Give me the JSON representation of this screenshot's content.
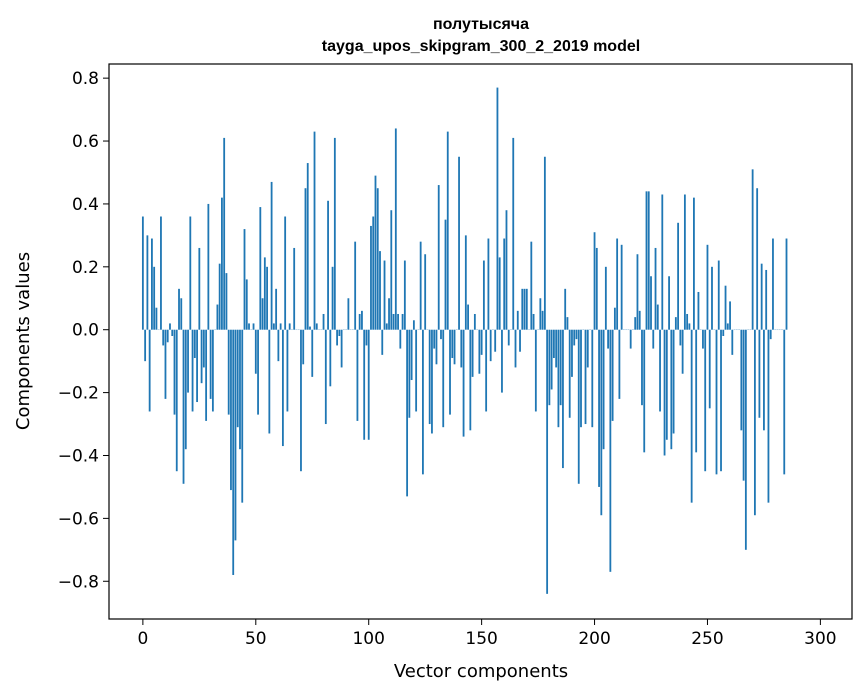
{
  "chart_data": {
    "type": "bar",
    "title": "полутысяча",
    "subtitle": "tayga_upos_skipgram_300_2_2019 model",
    "xlabel": "Vector components",
    "ylabel": "Components values",
    "xlim": [
      -15,
      314
    ],
    "ylim": [
      -0.92,
      0.845
    ],
    "xticks": [
      0,
      50,
      100,
      150,
      200,
      250,
      300
    ],
    "yticks": [
      -0.8,
      -0.6,
      -0.4,
      -0.2,
      0.0,
      0.2,
      0.4,
      0.6,
      0.8
    ],
    "bar_color": "#1f77b4",
    "grid": false,
    "legend": "none",
    "values": [
      0.36,
      -0.1,
      0.3,
      -0.26,
      0.29,
      0.2,
      0.07,
      0.0,
      0.36,
      -0.05,
      -0.22,
      -0.04,
      0.02,
      -0.02,
      -0.27,
      -0.45,
      0.13,
      0.1,
      -0.49,
      -0.38,
      -0.2,
      0.36,
      -0.26,
      -0.09,
      -0.23,
      0.26,
      -0.17,
      -0.12,
      -0.29,
      0.4,
      -0.22,
      -0.26,
      0.0,
      0.08,
      0.21,
      0.42,
      0.61,
      0.18,
      -0.27,
      -0.51,
      -0.78,
      -0.67,
      -0.31,
      -0.38,
      -0.55,
      0.32,
      0.16,
      0.02,
      0.0,
      0.02,
      -0.14,
      -0.27,
      0.39,
      0.1,
      0.23,
      0.2,
      -0.33,
      0.47,
      0.02,
      0.13,
      -0.1,
      0.02,
      -0.37,
      0.36,
      -0.26,
      0.02,
      0.0,
      0.26,
      0.0,
      0.0,
      -0.45,
      -0.11,
      0.45,
      0.53,
      0.01,
      -0.15,
      0.63,
      0.02,
      0.0,
      0.0,
      0.05,
      -0.3,
      0.41,
      -0.18,
      0.2,
      0.61,
      -0.05,
      -0.02,
      -0.12,
      0.0,
      0.0,
      0.1,
      0.0,
      0.0,
      0.28,
      -0.29,
      0.05,
      0.06,
      -0.35,
      -0.05,
      -0.35,
      0.33,
      0.36,
      0.49,
      0.45,
      0.25,
      -0.08,
      0.22,
      0.02,
      0.1,
      0.38,
      0.05,
      0.64,
      0.05,
      -0.06,
      0.05,
      0.22,
      -0.53,
      -0.28,
      -0.16,
      0.03,
      -0.26,
      0.0,
      0.28,
      -0.46,
      0.24,
      0.0,
      -0.3,
      -0.33,
      -0.06,
      -0.11,
      0.46,
      -0.03,
      -0.31,
      0.35,
      0.63,
      -0.27,
      -0.09,
      -0.11,
      0.0,
      0.55,
      -0.12,
      -0.34,
      0.3,
      0.08,
      -0.32,
      -0.15,
      0.05,
      0.0,
      -0.14,
      -0.08,
      0.22,
      -0.26,
      0.29,
      -0.1,
      0.0,
      -0.07,
      0.77,
      0.23,
      -0.2,
      0.29,
      0.38,
      -0.05,
      0.0,
      0.61,
      -0.12,
      0.06,
      -0.07,
      0.13,
      0.13,
      0.13,
      0.0,
      0.28,
      0.05,
      -0.26,
      0.0,
      0.1,
      0.06,
      0.55,
      -0.84,
      -0.24,
      -0.19,
      -0.09,
      -0.12,
      -0.31,
      -0.24,
      -0.44,
      0.13,
      0.04,
      -0.28,
      -0.15,
      -0.05,
      -0.03,
      -0.49,
      -0.31,
      0.0,
      -0.3,
      -0.12,
      0.0,
      -0.31,
      0.31,
      0.26,
      -0.5,
      -0.59,
      -0.38,
      0.2,
      -0.06,
      -0.77,
      -0.29,
      0.07,
      0.29,
      -0.22,
      0.27,
      0.0,
      0.0,
      0.0,
      -0.06,
      0.0,
      0.04,
      0.24,
      0.06,
      -0.24,
      -0.39,
      0.44,
      0.44,
      0.17,
      -0.06,
      0.26,
      0.08,
      -0.26,
      0.43,
      -0.4,
      -0.35,
      0.17,
      -0.38,
      -0.33,
      0.04,
      0.34,
      -0.05,
      -0.14,
      0.43,
      0.05,
      0.02,
      -0.55,
      0.42,
      -0.39,
      0.12,
      0.0,
      -0.06,
      -0.45,
      0.27,
      -0.25,
      0.2,
      0.0,
      -0.46,
      0.22,
      -0.45,
      -0.02,
      0.14,
      0.02,
      0.09,
      -0.08,
      0.0,
      0.0,
      0.0,
      -0.32,
      -0.48,
      -0.7,
      0.0,
      0.0,
      0.51,
      -0.59,
      0.45,
      -0.28,
      0.21,
      -0.32,
      0.19,
      -0.55,
      -0.03,
      0.29,
      0.0,
      0.0,
      0.0,
      0.0,
      -0.46,
      0.29
    ]
  }
}
